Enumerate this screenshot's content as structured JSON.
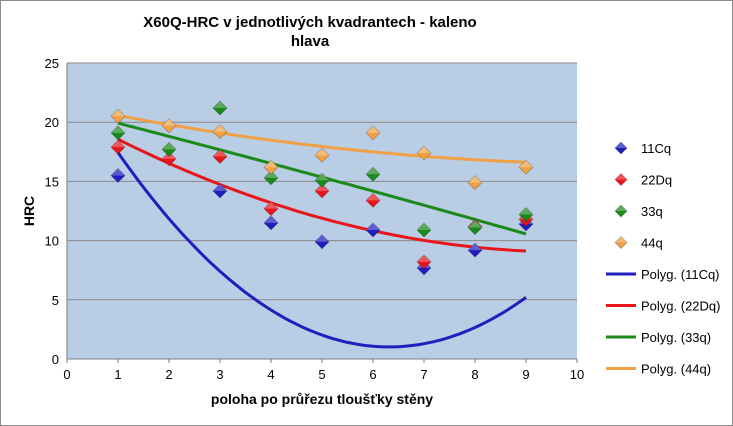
{
  "chart_data": {
    "type": "scatter",
    "title_line1": "X60Q-HRC v jednotlivých kvadrantech - kaleno",
    "title_line2": "hlava",
    "xlabel": "poloha po průřezu tloušťky stěny",
    "ylabel": "HRC",
    "xlim": [
      0,
      10
    ],
    "ylim": [
      0,
      25
    ],
    "xticks": [
      "0",
      "1",
      "2",
      "3",
      "4",
      "5",
      "6",
      "7",
      "8",
      "9",
      "10"
    ],
    "yticks": [
      "0",
      "5",
      "10",
      "15",
      "20",
      "25"
    ],
    "grid": "horizontal",
    "legend_position": "right",
    "series": [
      {
        "name": "11Cq",
        "color": "#1f1fbf",
        "x": [
          1,
          3,
          4,
          5,
          6,
          7,
          8,
          9
        ],
        "y": [
          15.5,
          14.2,
          11.5,
          9.9,
          10.9,
          7.7,
          9.2,
          11.4
        ]
      },
      {
        "name": "22Dq",
        "color": "#e8161b",
        "x": [
          1,
          2,
          3,
          4,
          5,
          6,
          7,
          8,
          9
        ],
        "y": [
          17.9,
          16.9,
          17.1,
          12.7,
          14.2,
          13.4,
          8.2,
          11.2,
          11.8
        ]
      },
      {
        "name": "33q",
        "color": "#1b8a1b",
        "x": [
          1,
          2,
          3,
          4,
          5,
          6,
          7,
          8,
          9
        ],
        "y": [
          19.1,
          17.7,
          21.2,
          15.3,
          15.1,
          15.6,
          10.9,
          11.1,
          12.2
        ]
      },
      {
        "name": "44q",
        "color": "#f0a145",
        "x": [
          1,
          2,
          3,
          4,
          5,
          6,
          7,
          8,
          9
        ],
        "y": [
          20.5,
          19.7,
          19.2,
          16.2,
          17.2,
          19.1,
          17.4,
          14.9,
          16.2
        ]
      }
    ],
    "trendlines": [
      {
        "name": "Polyg. (11Cq)",
        "color": "#1f1fbf",
        "coef": [
          24.2,
          -7.34,
          0.581
        ]
      },
      {
        "name": "Polyg. (22Dq)",
        "color": "#e8161b",
        "coef": [
          20.84,
          -2.4,
          0.122
        ]
      },
      {
        "name": "Polyg. (33q)",
        "color": "#1b8a1b",
        "coef": [
          21.03,
          -1.1,
          -0.007
        ]
      },
      {
        "name": "Polyg. (44q)",
        "color": "#f0a145",
        "coef": [
          21.43,
          -0.9,
          0.0406
        ]
      }
    ]
  }
}
